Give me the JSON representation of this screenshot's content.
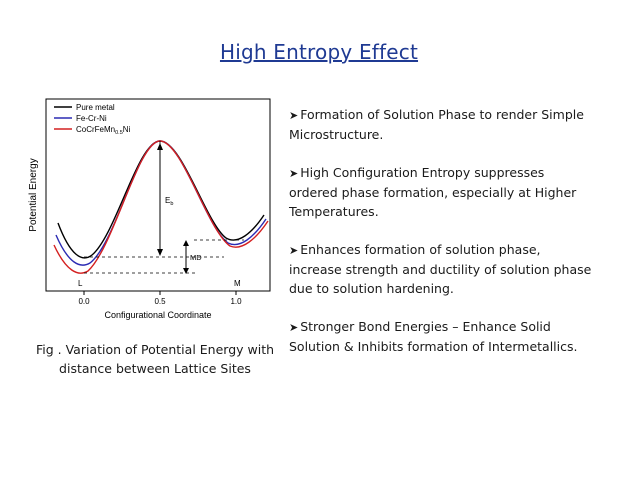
{
  "title": "High Entropy Effect",
  "figure": {
    "legend": {
      "pure": "Pure metal",
      "fecrni": "Fe-Cr-Ni",
      "hea_main": "CoCrFeMn",
      "hea_sub": "0.5",
      "hea_tail": "Ni"
    },
    "ylabel": "Potential Energy",
    "xlabel": "Configurational Coordinate",
    "xticks": [
      "0.0",
      "0.5",
      "1.0"
    ],
    "eb_main": "E",
    "eb_sub": "b",
    "md": "MD",
    "l": "L",
    "m": "M",
    "colors": {
      "pure": "#000000",
      "fecrni": "#2b2bb3",
      "hea": "#d42020"
    }
  },
  "caption": {
    "line1": "Fig . Variation of Potential Energy with",
    "line2": "distance between Lattice Sites"
  },
  "bullets": [
    {
      "l1": "Formation of Solution Phase to render Simple",
      "l2": "Microstructure."
    },
    {
      "l1": "High Configuration Entropy suppresses",
      "l2": "ordered phase formation, especially at Higher",
      "l3": "Temperatures."
    },
    {
      "l1": "Enhances formation of solution phase,",
      "l2": "increase strength and ductility of solution phase",
      "l3": "due to solution hardening."
    },
    {
      "l1": "Stronger Bond Energies – Enhance Solid",
      "l2": "Solution & Inhibits formation of Intermetallics."
    }
  ]
}
